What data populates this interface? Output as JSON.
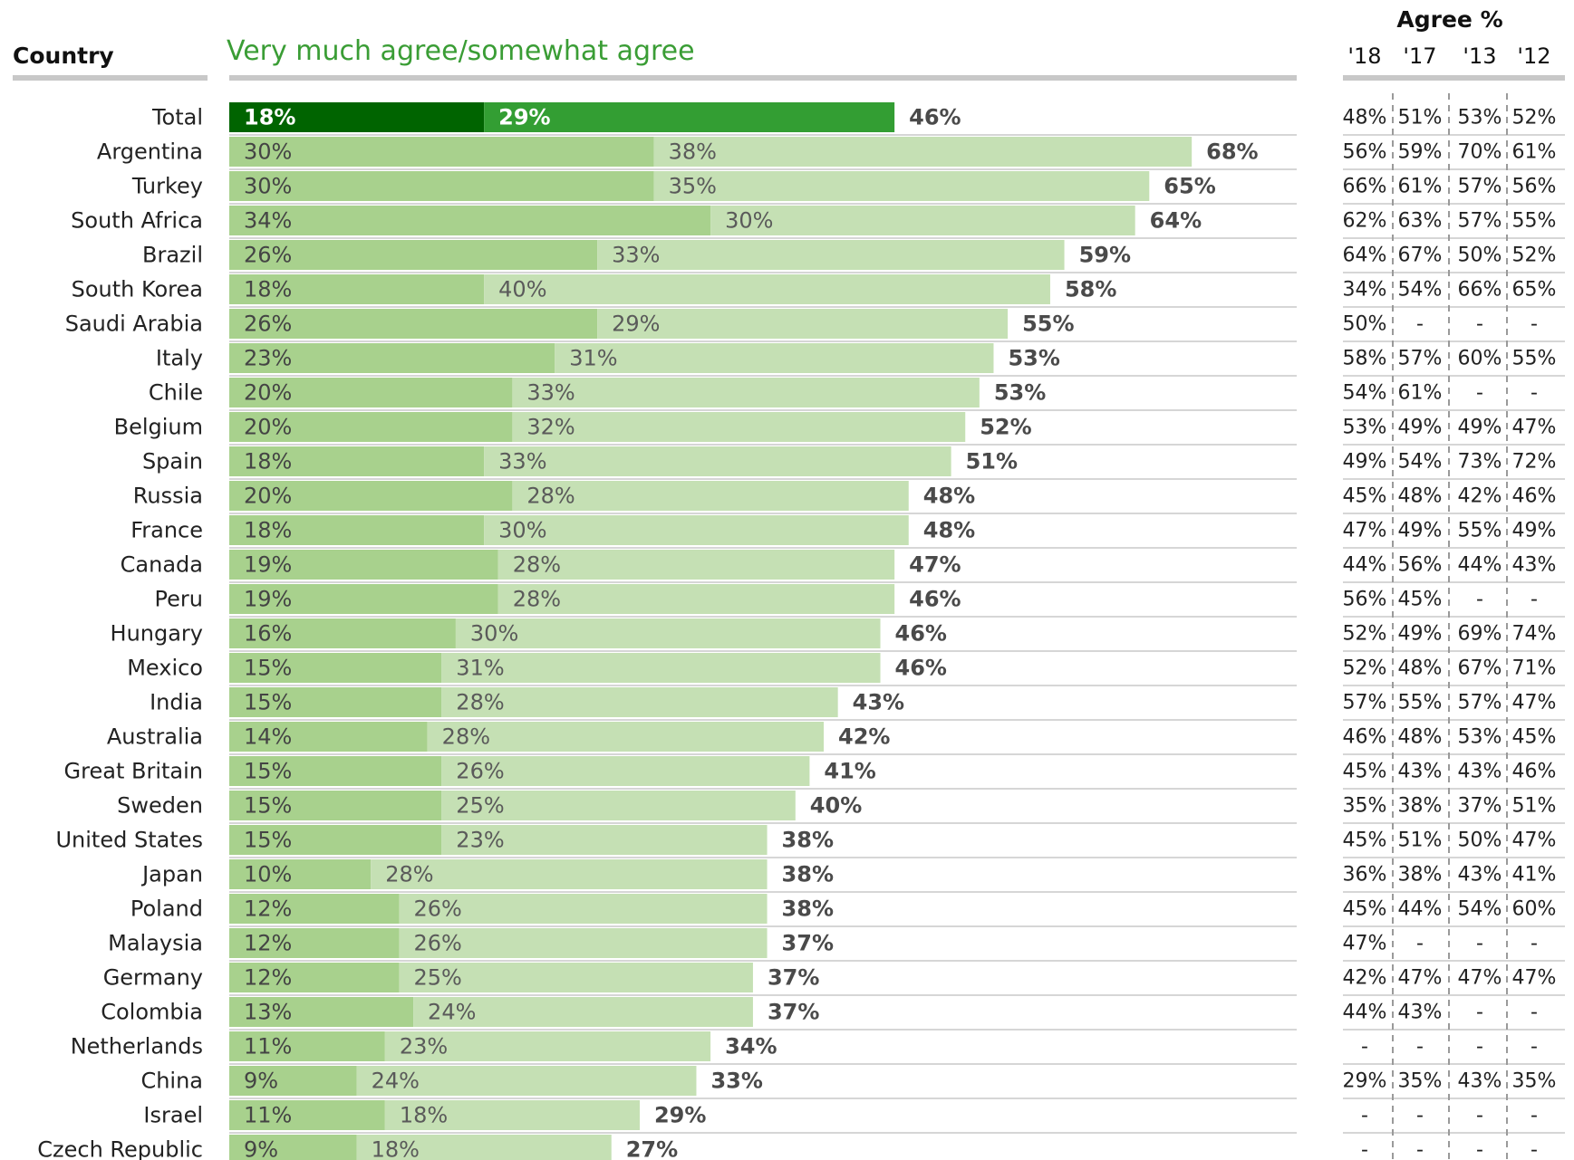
{
  "headers": {
    "country": "Country",
    "series_title": "Very much agree/somewhat agree",
    "agree_title": "Agree %",
    "years": [
      "'18",
      "'17",
      "'13",
      "'12"
    ]
  },
  "colors": {
    "strong_bar": "#a8d18d",
    "somewhat_bar": "#c5e0b4",
    "total_strong_bar": "#006400",
    "total_somewhat_bar": "#339e33",
    "header_green": "#3a9d35",
    "rule_gray": "#c8c8c8"
  },
  "chart_data": {
    "type": "bar",
    "orientation": "horizontal",
    "stacked": true,
    "xlim": [
      0,
      100
    ],
    "series": [
      {
        "name": "Very much agree",
        "key": "strong"
      },
      {
        "name": "somewhat agree",
        "key": "somewhat"
      }
    ],
    "rows": [
      {
        "country": "Total",
        "strong": 18,
        "somewhat": 29,
        "total": 46,
        "history": [
          "48%",
          "51%",
          "53%",
          "52%"
        ]
      },
      {
        "country": "Argentina",
        "strong": 30,
        "somewhat": 38,
        "total": 68,
        "history": [
          "56%",
          "59%",
          "70%",
          "61%"
        ]
      },
      {
        "country": "Turkey",
        "strong": 30,
        "somewhat": 35,
        "total": 65,
        "history": [
          "66%",
          "61%",
          "57%",
          "56%"
        ]
      },
      {
        "country": "South Africa",
        "strong": 34,
        "somewhat": 30,
        "total": 64,
        "history": [
          "62%",
          "63%",
          "57%",
          "55%"
        ]
      },
      {
        "country": "Brazil",
        "strong": 26,
        "somewhat": 33,
        "total": 59,
        "history": [
          "64%",
          "67%",
          "50%",
          "52%"
        ]
      },
      {
        "country": "South Korea",
        "strong": 18,
        "somewhat": 40,
        "total": 58,
        "history": [
          "34%",
          "54%",
          "66%",
          "65%"
        ]
      },
      {
        "country": "Saudi Arabia",
        "strong": 26,
        "somewhat": 29,
        "total": 55,
        "history": [
          "50%",
          "-",
          "-",
          "-"
        ]
      },
      {
        "country": "Italy",
        "strong": 23,
        "somewhat": 31,
        "total": 53,
        "history": [
          "58%",
          "57%",
          "60%",
          "55%"
        ]
      },
      {
        "country": "Chile",
        "strong": 20,
        "somewhat": 33,
        "total": 53,
        "history": [
          "54%",
          "61%",
          "-",
          "-"
        ]
      },
      {
        "country": "Belgium",
        "strong": 20,
        "somewhat": 32,
        "total": 52,
        "history": [
          "53%",
          "49%",
          "49%",
          "47%"
        ]
      },
      {
        "country": "Spain",
        "strong": 18,
        "somewhat": 33,
        "total": 51,
        "history": [
          "49%",
          "54%",
          "73%",
          "72%"
        ]
      },
      {
        "country": "Russia",
        "strong": 20,
        "somewhat": 28,
        "total": 48,
        "history": [
          "45%",
          "48%",
          "42%",
          "46%"
        ]
      },
      {
        "country": "France",
        "strong": 18,
        "somewhat": 30,
        "total": 48,
        "history": [
          "47%",
          "49%",
          "55%",
          "49%"
        ]
      },
      {
        "country": "Canada",
        "strong": 19,
        "somewhat": 28,
        "total": 47,
        "history": [
          "44%",
          "56%",
          "44%",
          "43%"
        ]
      },
      {
        "country": "Peru",
        "strong": 19,
        "somewhat": 28,
        "total": 46,
        "history": [
          "56%",
          "45%",
          "-",
          "-"
        ]
      },
      {
        "country": "Hungary",
        "strong": 16,
        "somewhat": 30,
        "total": 46,
        "history": [
          "52%",
          "49%",
          "69%",
          "74%"
        ]
      },
      {
        "country": "Mexico",
        "strong": 15,
        "somewhat": 31,
        "total": 46,
        "history": [
          "52%",
          "48%",
          "67%",
          "71%"
        ]
      },
      {
        "country": "India",
        "strong": 15,
        "somewhat": 28,
        "total": 43,
        "history": [
          "57%",
          "55%",
          "57%",
          "47%"
        ]
      },
      {
        "country": "Australia",
        "strong": 14,
        "somewhat": 28,
        "total": 42,
        "history": [
          "46%",
          "48%",
          "53%",
          "45%"
        ]
      },
      {
        "country": "Great Britain",
        "strong": 15,
        "somewhat": 26,
        "total": 41,
        "history": [
          "45%",
          "43%",
          "43%",
          "46%"
        ]
      },
      {
        "country": "Sweden",
        "strong": 15,
        "somewhat": 25,
        "total": 40,
        "history": [
          "35%",
          "38%",
          "37%",
          "51%"
        ]
      },
      {
        "country": "United States",
        "strong": 15,
        "somewhat": 23,
        "total": 38,
        "history": [
          "45%",
          "51%",
          "50%",
          "47%"
        ]
      },
      {
        "country": "Japan",
        "strong": 10,
        "somewhat": 28,
        "total": 38,
        "history": [
          "36%",
          "38%",
          "43%",
          "41%"
        ]
      },
      {
        "country": "Poland",
        "strong": 12,
        "somewhat": 26,
        "total": 38,
        "history": [
          "45%",
          "44%",
          "54%",
          "60%"
        ]
      },
      {
        "country": "Malaysia",
        "strong": 12,
        "somewhat": 26,
        "total": 37,
        "history": [
          "47%",
          "-",
          "-",
          "-"
        ]
      },
      {
        "country": "Germany",
        "strong": 12,
        "somewhat": 25,
        "total": 37,
        "history": [
          "42%",
          "47%",
          "47%",
          "47%"
        ]
      },
      {
        "country": "Colombia",
        "strong": 13,
        "somewhat": 24,
        "total": 37,
        "history": [
          "44%",
          "43%",
          "-",
          "-"
        ]
      },
      {
        "country": "Netherlands",
        "strong": 11,
        "somewhat": 23,
        "total": 34,
        "history": [
          "-",
          "-",
          "-",
          "-"
        ]
      },
      {
        "country": "China",
        "strong": 9,
        "somewhat": 24,
        "total": 33,
        "history": [
          "29%",
          "35%",
          "43%",
          "35%"
        ]
      },
      {
        "country": "Israel",
        "strong": 11,
        "somewhat": 18,
        "total": 29,
        "history": [
          "-",
          "-",
          "-",
          "-"
        ]
      },
      {
        "country": "Czech Republic",
        "strong": 9,
        "somewhat": 18,
        "total": 27,
        "history": [
          "-",
          "-",
          "-",
          "-"
        ]
      }
    ]
  }
}
